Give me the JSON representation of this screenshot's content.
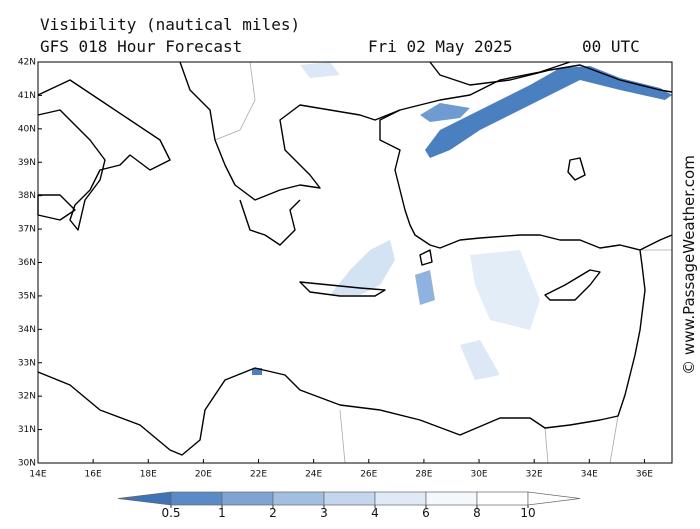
{
  "header": {
    "title": "Visibility (nautical miles)",
    "subtitle": "GFS 018 Hour Forecast",
    "date": "Fri 02 May 2025",
    "time": "00 UTC"
  },
  "map": {
    "lat_labels": [
      "30N",
      "31N",
      "32N",
      "33N",
      "34N",
      "35N",
      "36N",
      "37N",
      "38N",
      "39N",
      "40N",
      "41N",
      "42N"
    ],
    "lon_labels": [
      "14E",
      "16E",
      "18E",
      "20E",
      "22E",
      "24E",
      "26E",
      "28E",
      "30E",
      "32E",
      "34E",
      "36E"
    ]
  },
  "colorbar": {
    "labels": [
      0.5,
      1,
      2,
      3,
      4,
      6,
      8,
      10
    ]
  },
  "credit": "© www.PassageWeather.com"
}
